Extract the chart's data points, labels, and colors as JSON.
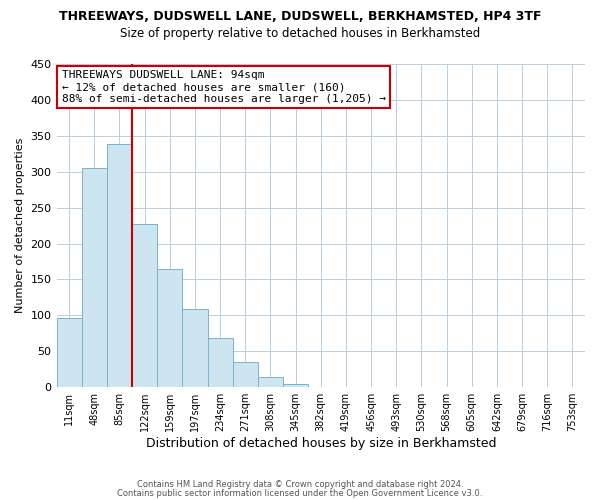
{
  "title": "THREEWAYS, DUDSWELL LANE, DUDSWELL, BERKHAMSTED, HP4 3TF",
  "subtitle": "Size of property relative to detached houses in Berkhamsted",
  "xlabel": "Distribution of detached houses by size in Berkhamsted",
  "ylabel": "Number of detached properties",
  "bar_color": "#cce5f0",
  "bar_edgecolor": "#7ab3cc",
  "bin_labels": [
    "11sqm",
    "48sqm",
    "85sqm",
    "122sqm",
    "159sqm",
    "197sqm",
    "234sqm",
    "271sqm",
    "308sqm",
    "345sqm",
    "382sqm",
    "419sqm",
    "456sqm",
    "493sqm",
    "530sqm",
    "568sqm",
    "605sqm",
    "642sqm",
    "679sqm",
    "716sqm",
    "753sqm"
  ],
  "bar_heights": [
    97,
    305,
    338,
    227,
    164,
    109,
    69,
    35,
    14,
    5,
    0,
    0,
    0,
    0,
    0,
    0,
    0,
    0,
    0,
    0,
    0
  ],
  "ylim": [
    0,
    450
  ],
  "yticks": [
    0,
    50,
    100,
    150,
    200,
    250,
    300,
    350,
    400,
    450
  ],
  "vline_color": "#cc0000",
  "annotation_title": "THREEWAYS DUDSWELL LANE: 94sqm",
  "annotation_line1": "← 12% of detached houses are smaller (160)",
  "annotation_line2": "88% of semi-detached houses are larger (1,205) →",
  "footer1": "Contains HM Land Registry data © Crown copyright and database right 2024.",
  "footer2": "Contains public sector information licensed under the Open Government Licence v3.0.",
  "bg_color": "#ffffff",
  "grid_color": "#b8cfe0",
  "annotation_box_color": "#ffffff",
  "annotation_box_edgecolor": "#cc0000"
}
